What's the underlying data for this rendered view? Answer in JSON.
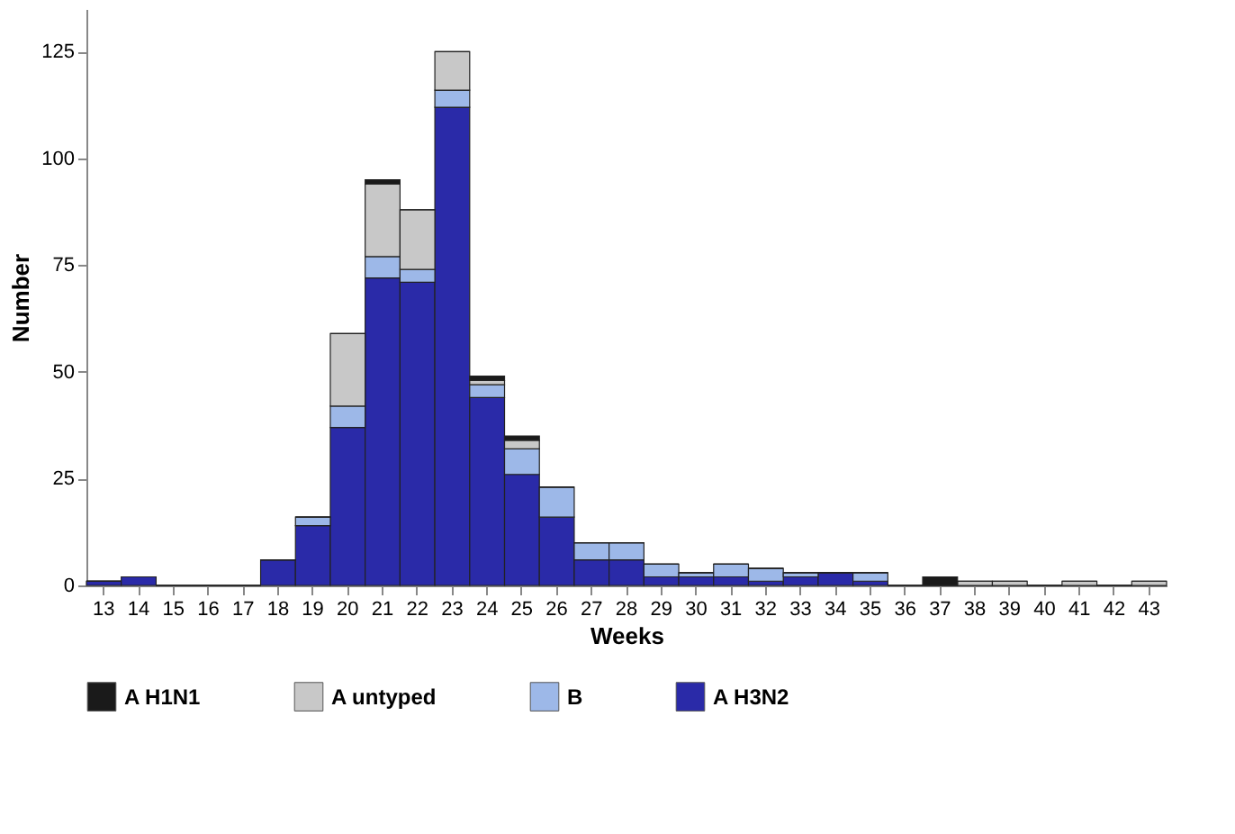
{
  "chart_data": {
    "type": "bar",
    "stacked": true,
    "xlabel": "Weeks",
    "ylabel": "Number",
    "categories": [
      "13",
      "14",
      "15",
      "16",
      "17",
      "18",
      "19",
      "20",
      "21",
      "22",
      "23",
      "24",
      "25",
      "26",
      "27",
      "28",
      "29",
      "30",
      "31",
      "32",
      "33",
      "34",
      "35",
      "36",
      "37",
      "38",
      "39",
      "40",
      "41",
      "42",
      "43"
    ],
    "series": [
      {
        "name": "A H3N2",
        "color": "#2a2aa8",
        "values": [
          1,
          2,
          0,
          0,
          0,
          6,
          14,
          37,
          72,
          71,
          112,
          44,
          26,
          16,
          6,
          6,
          2,
          2,
          2,
          1,
          2,
          3,
          1,
          0,
          0,
          0,
          0,
          0,
          0,
          0,
          0
        ]
      },
      {
        "name": "B",
        "color": "#9db8e8",
        "values": [
          0,
          0,
          0,
          0,
          0,
          0,
          2,
          5,
          5,
          3,
          4,
          3,
          6,
          7,
          4,
          4,
          3,
          1,
          3,
          3,
          1,
          0,
          2,
          0,
          0,
          0,
          0,
          0,
          0,
          0,
          0
        ]
      },
      {
        "name": "A untyped",
        "color": "#c8c8c8",
        "values": [
          0,
          0,
          0,
          0,
          0,
          0,
          0,
          17,
          17,
          14,
          9,
          1,
          2,
          0,
          0,
          0,
          0,
          0,
          0,
          0,
          0,
          0,
          0,
          0,
          0,
          1,
          1,
          0,
          1,
          0,
          1
        ]
      },
      {
        "name": "A H1N1",
        "color": "#1a1a1a",
        "values": [
          0,
          0,
          0,
          0,
          0,
          0,
          0,
          0,
          1,
          0,
          0,
          1,
          1,
          0,
          0,
          0,
          0,
          0,
          0,
          0,
          0,
          0,
          0,
          0,
          2,
          0,
          0,
          0,
          0,
          0,
          0
        ]
      }
    ],
    "ylim": [
      0,
      135
    ],
    "yticks": [
      0,
      25,
      50,
      75,
      100,
      125
    ],
    "grid": false,
    "legend": "bottom"
  }
}
